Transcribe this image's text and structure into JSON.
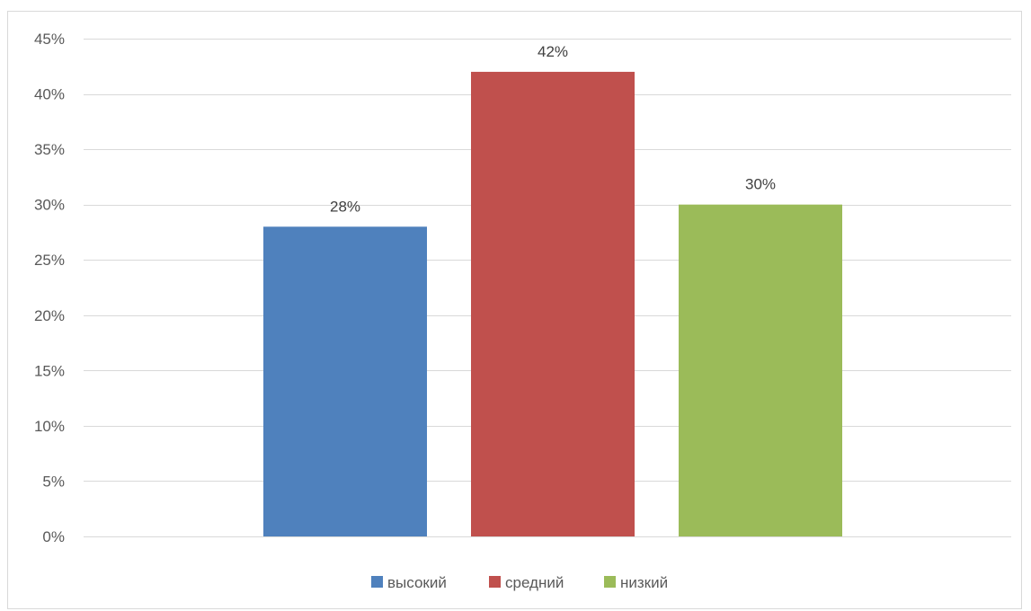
{
  "chart_data": {
    "type": "bar",
    "categories": [
      ""
    ],
    "series": [
      {
        "name": "высокий",
        "values": [
          28
        ],
        "color": "#4F81BD",
        "label": "28%"
      },
      {
        "name": "средний",
        "values": [
          42
        ],
        "color": "#C0504D",
        "label": "42%"
      },
      {
        "name": "низкий",
        "values": [
          30
        ],
        "color": "#9BBB59",
        "label": "30%"
      }
    ],
    "title": "",
    "xlabel": "",
    "ylabel": "",
    "ylim": [
      0,
      45
    ],
    "yticks": [
      0,
      5,
      10,
      15,
      20,
      25,
      30,
      35,
      40,
      45
    ],
    "ytick_labels": [
      "0%",
      "5%",
      "10%",
      "15%",
      "20%",
      "25%",
      "30%",
      "35%",
      "40%",
      "45%"
    ],
    "grid": true,
    "legend_position": "bottom",
    "data_labels": true
  }
}
